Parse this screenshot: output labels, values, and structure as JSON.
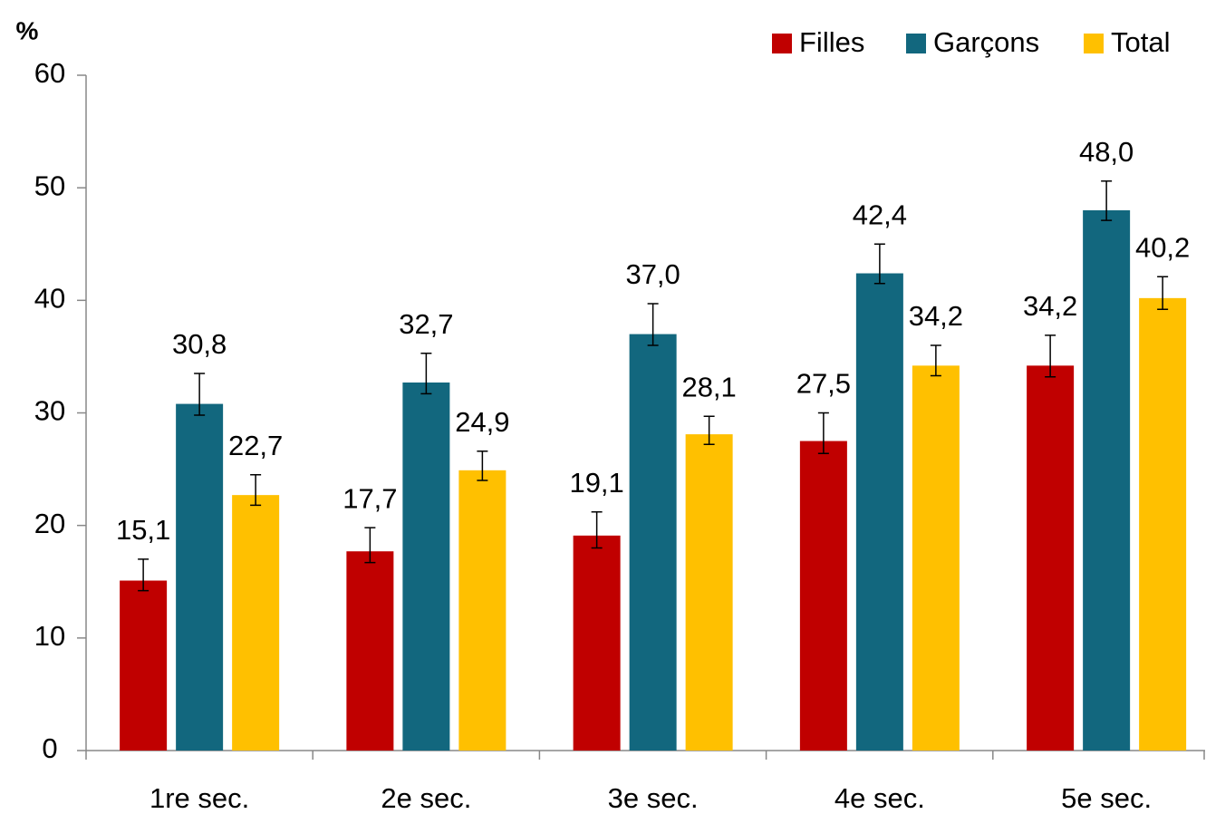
{
  "chart_data": {
    "type": "bar",
    "y_label": "%",
    "categories": [
      "1re sec.",
      "2e sec.",
      "3e sec.",
      "4e sec.",
      "5e sec."
    ],
    "series": [
      {
        "name": "Filles",
        "color": "#c00000",
        "values": [
          15.1,
          17.7,
          19.1,
          27.5,
          34.2
        ],
        "value_labels": [
          "15,1",
          "17,7",
          "19,1",
          "27,5",
          "34,2"
        ],
        "lower": [
          14.2,
          16.7,
          18.0,
          26.4,
          33.2
        ],
        "upper": [
          17.0,
          19.8,
          21.2,
          30.0,
          36.9
        ]
      },
      {
        "name": "Garçons",
        "color": "#12677e",
        "values": [
          30.8,
          32.7,
          37.0,
          42.4,
          48.0
        ],
        "value_labels": [
          "30,8",
          "32,7",
          "37,0",
          "42,4",
          "48,0"
        ],
        "lower": [
          29.8,
          31.7,
          36.0,
          41.5,
          47.1
        ],
        "upper": [
          33.5,
          35.3,
          39.7,
          45.0,
          50.6
        ]
      },
      {
        "name": "Total",
        "color": "#ffc000",
        "values": [
          22.7,
          24.9,
          28.1,
          34.2,
          40.2
        ],
        "value_labels": [
          "22,7",
          "24,9",
          "28,1",
          "34,2",
          "40,2"
        ],
        "lower": [
          21.8,
          24.0,
          27.2,
          33.3,
          39.2
        ],
        "upper": [
          24.5,
          26.6,
          29.7,
          36.0,
          42.1
        ]
      }
    ],
    "ylim": [
      0,
      60
    ],
    "yticks": [
      0,
      10,
      20,
      30,
      40,
      50,
      60
    ],
    "grid": false,
    "legend": "top-right"
  }
}
